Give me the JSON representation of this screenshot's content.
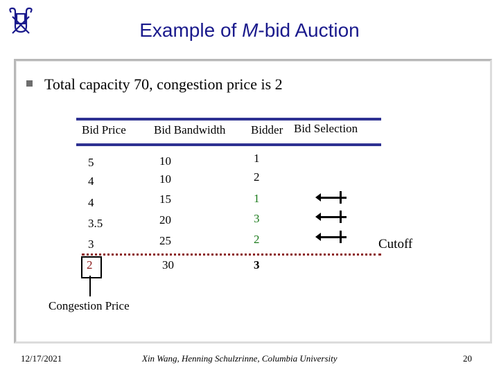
{
  "slide": {
    "title_prefix": "Example of ",
    "title_italic": "M",
    "title_suffix": "-bid Auction",
    "bullet": "Total capacity 70, congestion price is 2"
  },
  "table": {
    "headers": {
      "price": "Bid Price",
      "bandwidth": "Bid Bandwidth",
      "bidder": "Bidder",
      "selection": "Bid Selection"
    },
    "rows": [
      {
        "price": "5",
        "bandwidth": "10",
        "bidder": "1"
      },
      {
        "price": "4",
        "bandwidth": "10",
        "bidder": "2"
      },
      {
        "price": "4",
        "bandwidth": "15",
        "bidder": "1"
      },
      {
        "price": "3.5",
        "bandwidth": "20",
        "bidder": "3"
      },
      {
        "price": "3",
        "bandwidth": "25",
        "bidder": "2"
      },
      {
        "price": "2",
        "bandwidth": "30",
        "bidder": "3"
      }
    ]
  },
  "annotations": {
    "cutoff": "Cutoff",
    "congestion_price": "Congestion Price"
  },
  "colors": {
    "title": "#1a1a8c",
    "rule": "#2e3192",
    "highlight": "#1a7a1a",
    "cutoff_line": "#8b1a1a"
  },
  "footer": {
    "date": "12/17/2021",
    "authors": "Xin Wang, Henning Schulzrinne, Columbia University",
    "page": "20"
  }
}
